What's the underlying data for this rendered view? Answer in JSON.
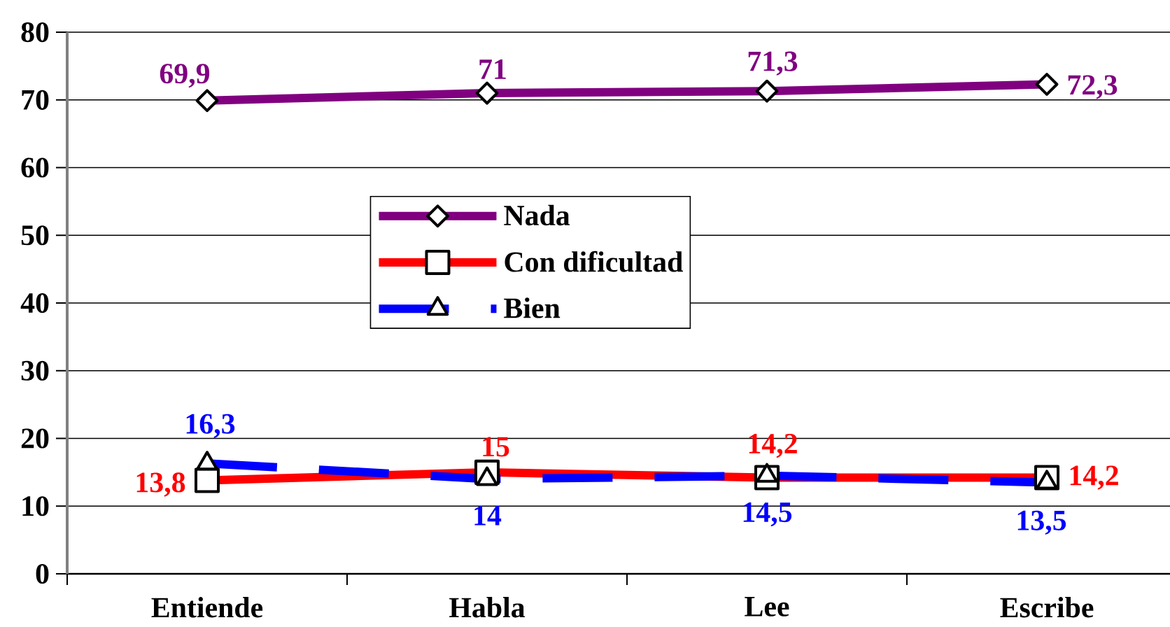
{
  "chart_data": {
    "type": "line",
    "categories": [
      "Entiende",
      "Habla",
      "Lee",
      "Escribe"
    ],
    "series": [
      {
        "name": "Nada",
        "color": "#800080",
        "values": [
          69.9,
          71,
          71.3,
          72.3
        ],
        "value_labels": [
          "69,9",
          "71",
          "71,3",
          "72,3"
        ],
        "marker": "diamond",
        "line_style": "solid"
      },
      {
        "name": "Con dificultad",
        "color": "#ff0000",
        "values": [
          13.8,
          15,
          14.2,
          14.2
        ],
        "value_labels": [
          "13,8",
          "15",
          "14,2",
          "14,2"
        ],
        "marker": "square",
        "line_style": "solid"
      },
      {
        "name": "Bien",
        "color": "#0000ff",
        "values": [
          16.3,
          14,
          14.5,
          13.5
        ],
        "value_labels": [
          "16,3",
          "14",
          "14,5",
          "13,5"
        ],
        "marker": "triangle",
        "line_style": "dashed"
      }
    ],
    "ylim": [
      0,
      80
    ],
    "yticks": [
      0,
      10,
      20,
      30,
      40,
      50,
      60,
      70,
      80
    ],
    "grid": "y",
    "legend": "center"
  }
}
